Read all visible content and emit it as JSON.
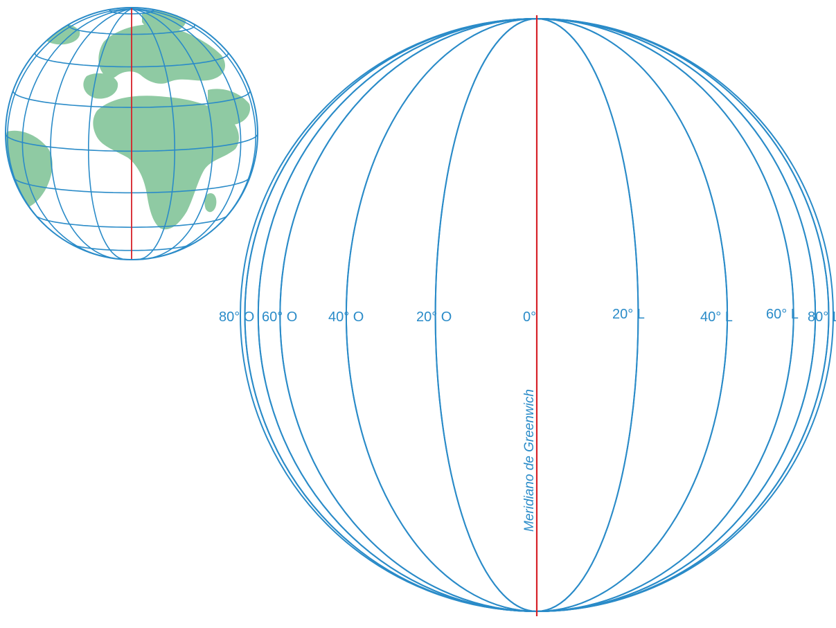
{
  "colors": {
    "graticule": "#2a8bc8",
    "prime_meridian": "#d62027",
    "land": "#8fcaa3",
    "background": "#ffffff"
  },
  "small_globe": {
    "description_icon": "globe-icon"
  },
  "large_globe": {
    "meridian_labels": [
      "80° O",
      "60° O",
      "40° O",
      "20° O",
      "0°",
      "20° L",
      "40° L",
      "60° L",
      "80° L"
    ],
    "prime_meridian_label": "Meridiano de Greenwich"
  }
}
